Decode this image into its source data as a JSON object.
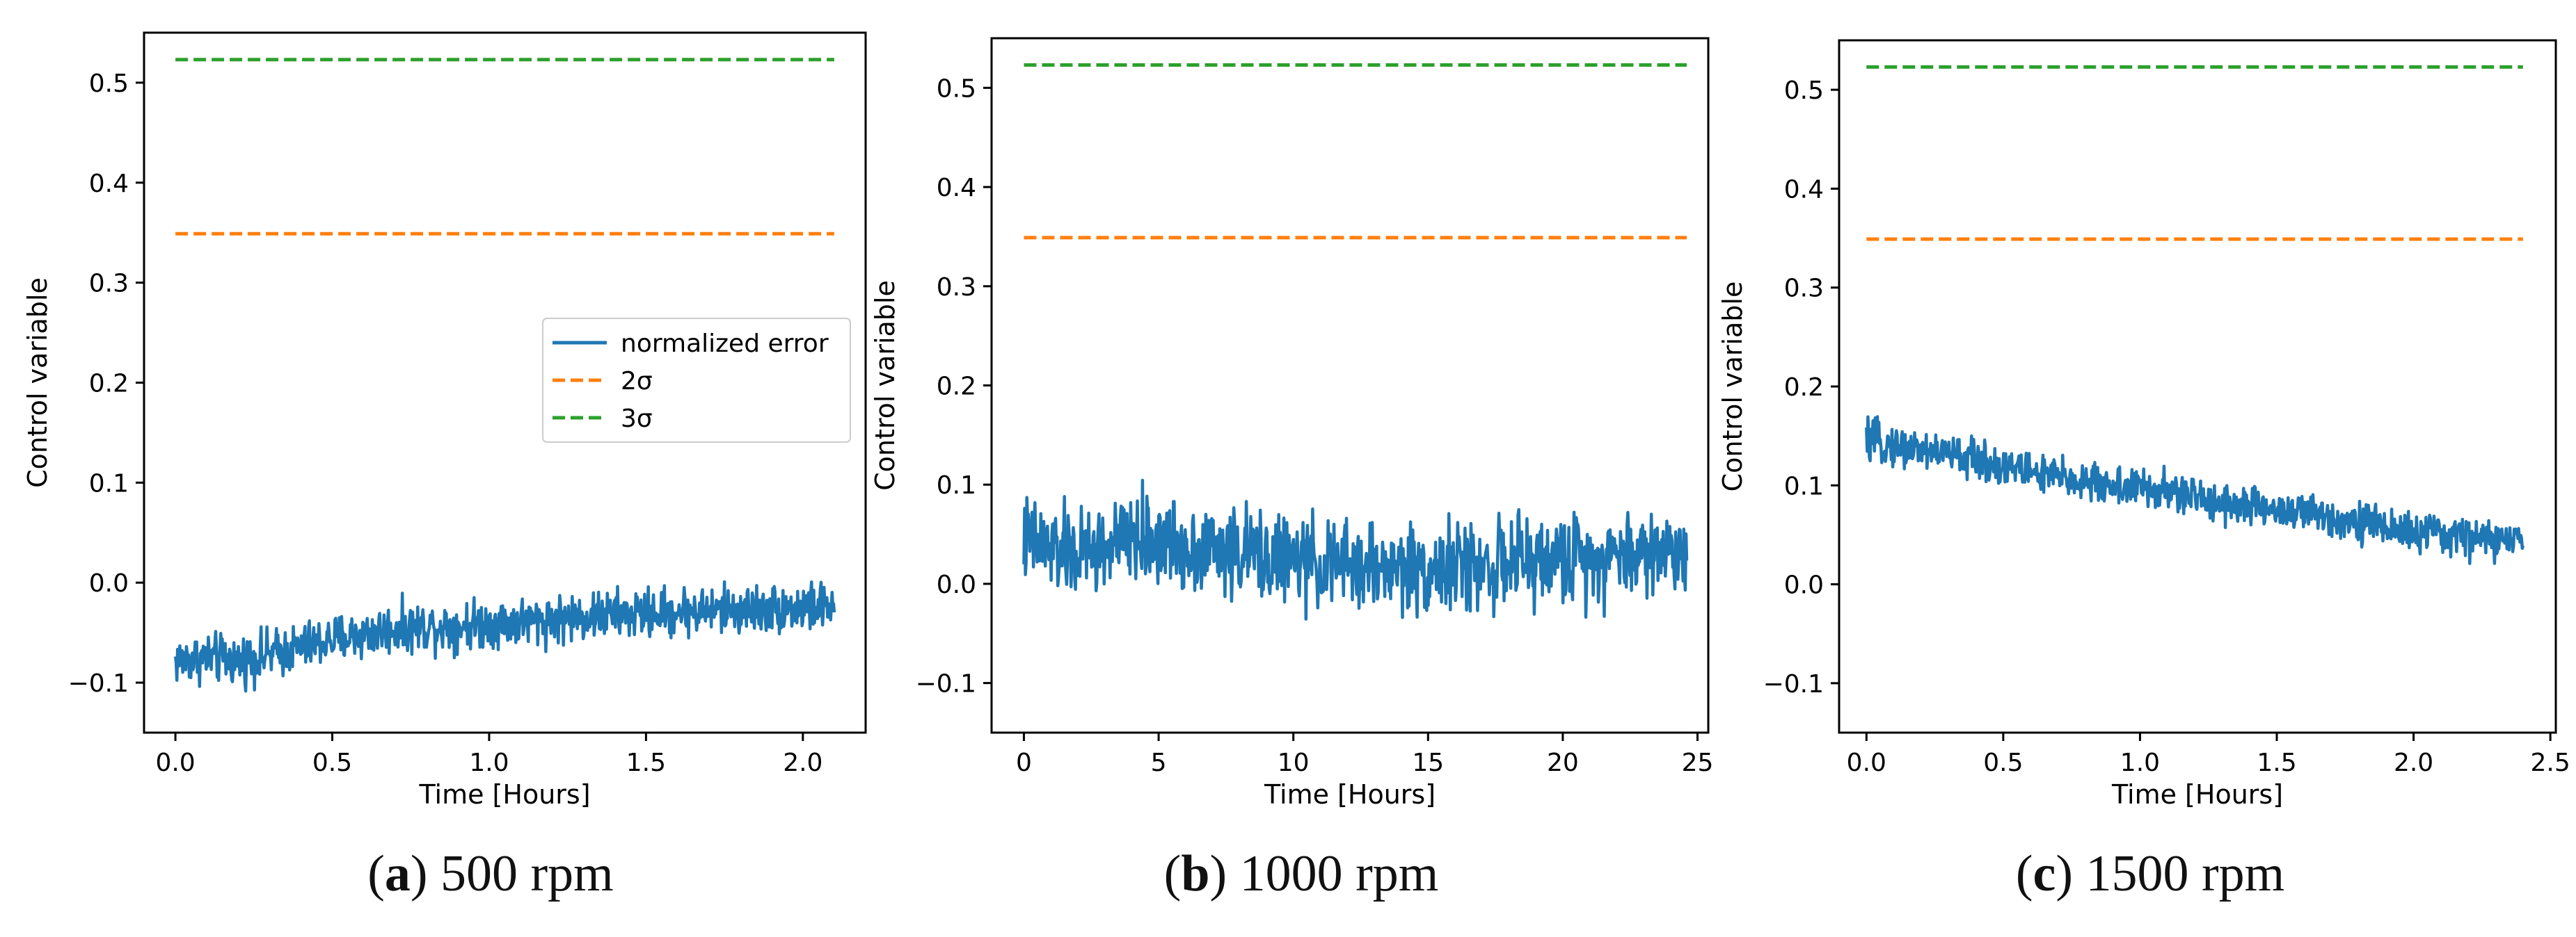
{
  "chart_data": [
    {
      "type": "line",
      "caption_letter": "a",
      "caption_text": ") 500 rpm",
      "xlabel": "Time [Hours]",
      "ylabel": "Control variable",
      "xlim": [
        -0.1,
        2.2
      ],
      "ylim": [
        -0.15,
        0.55
      ],
      "xticks": [
        0.0,
        0.5,
        1.0,
        1.5,
        2.0
      ],
      "xtick_labels": [
        "0.0",
        "0.5",
        "1.0",
        "1.5",
        "2.0"
      ],
      "yticks": [
        -0.1,
        0.0,
        0.1,
        0.2,
        0.3,
        0.4,
        0.5
      ],
      "ytick_labels": [
        "−0.1",
        "0.0",
        "0.1",
        "0.2",
        "0.3",
        "0.4",
        "0.5"
      ],
      "legend": {
        "placement": "center-right",
        "entries": [
          "normalized error",
          "2σ",
          "3σ"
        ]
      },
      "series": [
        {
          "name": "normalized error",
          "color": "#1f77b4",
          "style": "solid",
          "x": [
            0.0,
            0.1,
            0.2,
            0.3,
            0.4,
            0.5,
            0.6,
            0.7,
            0.8,
            0.9,
            1.0,
            1.1,
            1.2,
            1.3,
            1.4,
            1.5,
            1.6,
            1.7,
            1.8,
            1.9,
            2.0,
            2.1
          ],
          "y": [
            -0.078,
            -0.075,
            -0.078,
            -0.072,
            -0.065,
            -0.057,
            -0.052,
            -0.046,
            -0.044,
            -0.043,
            -0.04,
            -0.039,
            -0.037,
            -0.034,
            -0.032,
            -0.031,
            -0.029,
            -0.028,
            -0.027,
            -0.026,
            -0.025,
            -0.024
          ],
          "noise": 0.012
        },
        {
          "name": "2σ",
          "color": "#ff7f0e",
          "style": "dashed",
          "x": [
            0.0,
            2.1
          ],
          "y": [
            0.349,
            0.349
          ]
        },
        {
          "name": "3σ",
          "color": "#2ca02c",
          "style": "dashed",
          "x": [
            0.0,
            2.1
          ],
          "y": [
            0.523,
            0.523
          ]
        }
      ]
    },
    {
      "type": "line",
      "caption_letter": "b",
      "caption_text": ") 1000 rpm",
      "xlabel": "Time [Hours]",
      "ylabel": "Control variable",
      "xlim": [
        -1.2,
        25.4
      ],
      "ylim": [
        -0.15,
        0.55
      ],
      "xticks": [
        0,
        5,
        10,
        15,
        20,
        25
      ],
      "xtick_labels": [
        "0",
        "5",
        "10",
        "15",
        "20",
        "25"
      ],
      "yticks": [
        -0.1,
        0.0,
        0.1,
        0.2,
        0.3,
        0.4,
        0.5
      ],
      "ytick_labels": [
        "−0.1",
        "0.0",
        "0.1",
        "0.2",
        "0.3",
        "0.4",
        "0.5"
      ],
      "series": [
        {
          "name": "normalized error",
          "color": "#1f77b4",
          "style": "solid",
          "x": [
            0,
            1,
            2,
            3,
            4,
            5,
            6,
            7,
            8,
            9,
            10,
            11,
            12,
            13,
            14,
            15,
            16,
            17,
            18,
            19,
            20,
            21,
            22,
            23,
            24,
            24.6
          ],
          "y": [
            0.045,
            0.035,
            0.03,
            0.035,
            0.045,
            0.043,
            0.038,
            0.035,
            0.032,
            0.028,
            0.024,
            0.02,
            0.018,
            0.017,
            0.016,
            0.016,
            0.017,
            0.018,
            0.02,
            0.022,
            0.025,
            0.028,
            0.03,
            0.032,
            0.033,
            0.033
          ],
          "noise": 0.022
        },
        {
          "name": "2σ",
          "color": "#ff7f0e",
          "style": "dashed",
          "x": [
            0,
            24.6
          ],
          "y": [
            0.349,
            0.349
          ]
        },
        {
          "name": "3σ",
          "color": "#2ca02c",
          "style": "dashed",
          "x": [
            0,
            24.6
          ],
          "y": [
            0.523,
            0.523
          ]
        }
      ]
    },
    {
      "type": "line",
      "caption_letter": "c",
      "caption_text": ") 1500 rpm",
      "xlabel": "Time [Hours]",
      "ylabel": "Control variable",
      "xlim": [
        -0.1,
        2.52
      ],
      "ylim": [
        -0.15,
        0.55
      ],
      "xticks": [
        0.0,
        0.5,
        1.0,
        1.5,
        2.0,
        2.5
      ],
      "xtick_labels": [
        "0.0",
        "0.5",
        "1.0",
        "1.5",
        "2.0",
        "2.5"
      ],
      "yticks": [
        -0.1,
        0.0,
        0.1,
        0.2,
        0.3,
        0.4,
        0.5
      ],
      "ytick_labels": [
        "−0.1",
        "0.0",
        "0.1",
        "0.2",
        "0.3",
        "0.4",
        "0.5"
      ],
      "series": [
        {
          "name": "normalized error",
          "color": "#1f77b4",
          "style": "solid",
          "x": [
            0.0,
            0.1,
            0.2,
            0.3,
            0.4,
            0.5,
            0.6,
            0.7,
            0.8,
            0.9,
            1.0,
            1.1,
            1.2,
            1.3,
            1.4,
            1.5,
            1.6,
            1.7,
            1.8,
            1.9,
            2.0,
            2.1,
            2.2,
            2.3,
            2.4
          ],
          "y": [
            0.145,
            0.14,
            0.136,
            0.132,
            0.126,
            0.12,
            0.114,
            0.108,
            0.104,
            0.1,
            0.097,
            0.093,
            0.088,
            0.083,
            0.079,
            0.075,
            0.072,
            0.068,
            0.064,
            0.058,
            0.052,
            0.05,
            0.048,
            0.045,
            0.043
          ],
          "noise": 0.01
        },
        {
          "name": "2σ",
          "color": "#ff7f0e",
          "style": "dashed",
          "x": [
            0.0,
            2.4
          ],
          "y": [
            0.349,
            0.349
          ]
        },
        {
          "name": "3σ",
          "color": "#2ca02c",
          "style": "dashed",
          "x": [
            0.0,
            2.4
          ],
          "y": [
            0.523,
            0.523
          ]
        }
      ]
    }
  ]
}
